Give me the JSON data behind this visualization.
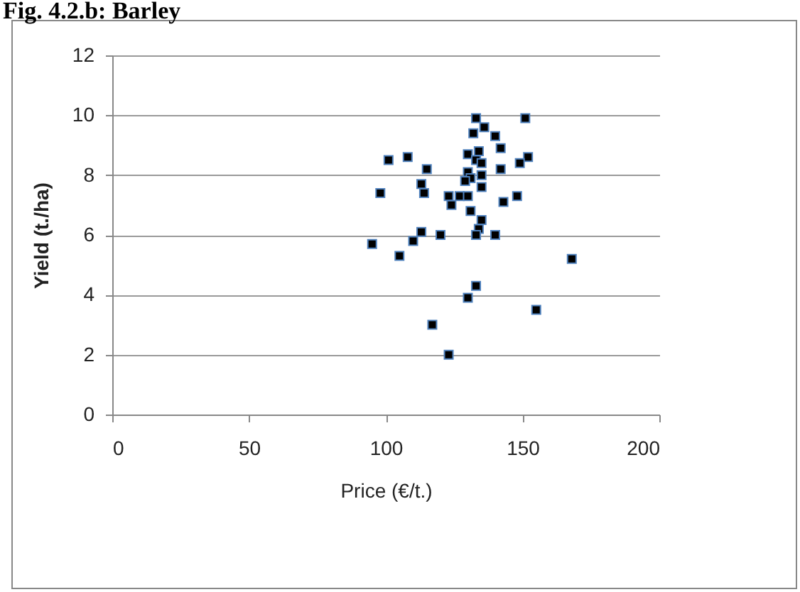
{
  "chart_data": {
    "type": "scatter",
    "title": "Fig. 4.2.b: Barley",
    "xlabel": "Price (€/t.)",
    "ylabel": "Yield (t./ha)",
    "x": [
      151,
      133,
      136,
      132,
      140,
      142,
      152,
      149,
      142,
      134,
      130,
      133,
      135,
      101,
      108,
      115,
      130,
      135,
      131,
      129,
      113,
      135,
      114,
      98,
      123,
      127,
      130,
      148,
      143,
      124,
      131,
      135,
      134,
      133,
      140,
      120,
      113,
      110,
      95,
      105,
      168,
      133,
      130,
      155,
      117,
      123
    ],
    "series": [
      {
        "color": "#000000",
        "values": [
          9.9,
          9.9,
          9.6,
          9.4,
          9.3,
          8.9,
          8.6,
          8.4,
          8.2,
          8.8,
          8.7,
          8.5,
          8.4,
          8.5,
          8.6,
          8.2,
          8.1,
          8.0,
          7.9,
          7.8,
          7.7,
          7.6,
          7.4,
          7.4,
          7.3,
          7.3,
          7.3,
          7.3,
          7.1,
          7.0,
          6.8,
          6.5,
          6.2,
          6.0,
          6.0,
          6.0,
          6.1,
          5.8,
          5.7,
          5.3,
          5.2,
          4.3,
          3.9,
          3.5,
          3.0,
          2.0
        ]
      }
    ],
    "xlim": [
      0,
      200
    ],
    "xticks": [
      0,
      50,
      100,
      150,
      200
    ],
    "ylim": [
      0,
      12
    ],
    "yticks": [
      0,
      2,
      4,
      6,
      8,
      10,
      12
    ],
    "grid": "y",
    "marker": "square",
    "legend": false
  }
}
